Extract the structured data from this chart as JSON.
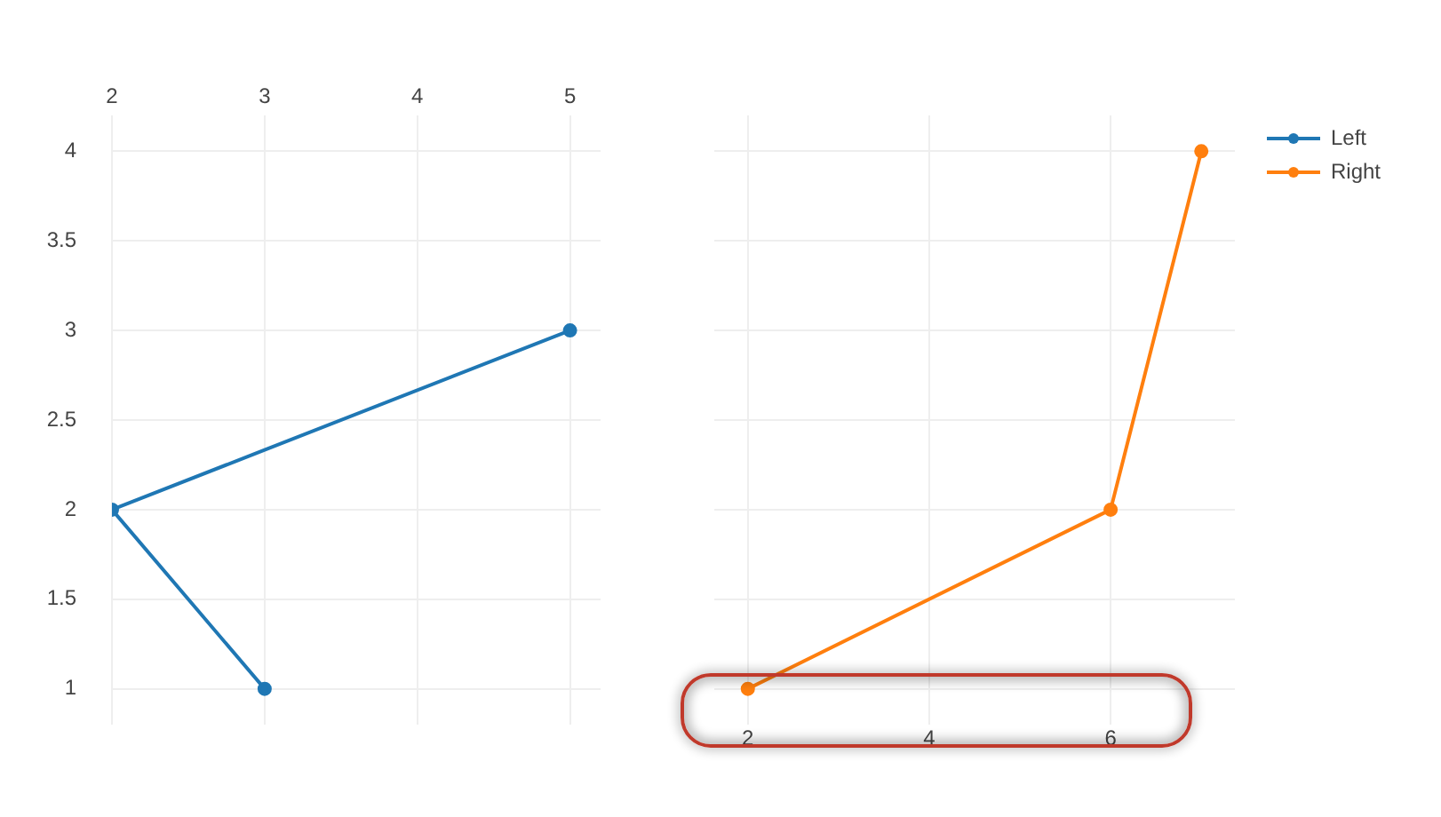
{
  "chart_data": [
    {
      "type": "line",
      "xlim": [
        2,
        5.2
      ],
      "xticks": [
        2,
        3,
        4,
        5
      ],
      "ylim": [
        0.8,
        4.2
      ],
      "yticks": [
        1,
        1.5,
        2,
        2.5,
        3,
        3.5,
        4
      ],
      "grid": true,
      "marker": "circle",
      "line_style": "solid",
      "series": [
        {
          "name": "Left",
          "color": "#1f77b4",
          "x": [
            3,
            2,
            5
          ],
          "values": [
            1,
            2,
            3
          ]
        }
      ]
    },
    {
      "type": "line",
      "xlim": [
        1.63,
        7.37
      ],
      "xticks": [
        2,
        4,
        6
      ],
      "ylim": [
        0.8,
        4.2
      ],
      "yticks": [
        1,
        1.5,
        2,
        2.5,
        3,
        3.5,
        4
      ],
      "tick_labels": "x",
      "grid": true,
      "marker": "circle",
      "line_style": "solid",
      "legend": "top right",
      "series": [
        {
          "name": "Right",
          "color": "#ff7f0e",
          "x": [
            2,
            6,
            7
          ],
          "values": [
            1,
            2,
            4
          ]
        }
      ]
    }
  ]
}
